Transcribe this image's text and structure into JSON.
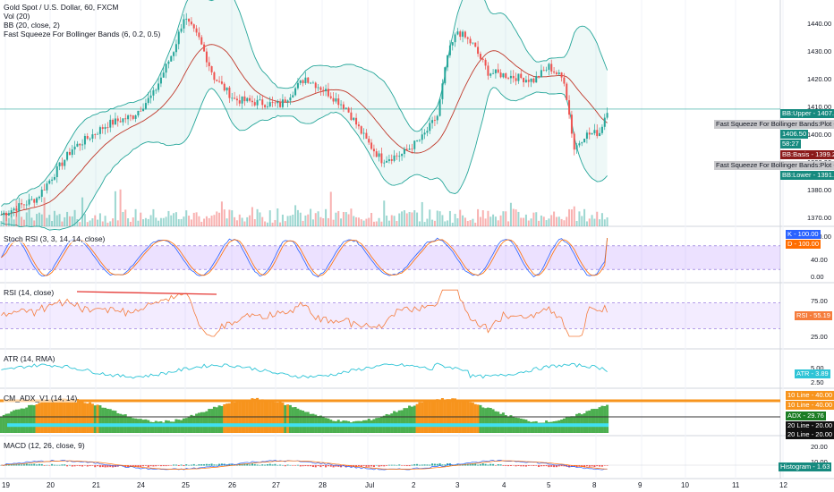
{
  "header": {
    "symbol_line": "Gold Spot / U.S. Dollar, 60, FXCM",
    "vol_line": "Vol (20)",
    "bb_line": "BB (20, close, 2)",
    "fs_line": "Fast Squeeze For Bollinger Bands (6, 0.2, 0.5)"
  },
  "panes": {
    "stoch": "Stoch RSI (3, 3, 14, 14, close)",
    "rsi": "RSI (14, close)",
    "atr": "ATR (14, RMA)",
    "adx": "CM_ADX_V1 (14, 14)",
    "macd": "MACD (12, 26, close, 9)"
  },
  "colors": {
    "up": "#26a69a",
    "down": "#ef5350",
    "bb_basis": "#c0392b",
    "bb_band": "#26a69a",
    "bb_fill": "rgba(38,166,154,0.08)",
    "stoch_k": "#2962ff",
    "stoch_d": "#ff6d00",
    "stoch_fill": "rgba(170,120,255,0.22)",
    "rsi_line": "#f57c3c",
    "rsi_fill": "rgba(160,100,255,0.12)",
    "atr_line": "#2ec4d6",
    "adx_orange": "#f7941d",
    "adx_green": "#4caf50",
    "adx_cyan": "#40e0f0"
  },
  "price_axis": [
    "1440.00",
    "1430.00",
    "1420.00",
    "1410.00",
    "1400.00",
    "1390.00",
    "1380.00",
    "1370.00"
  ],
  "stoch_axis": [
    "100.00",
    "40.00",
    "0.00"
  ],
  "rsi_axis": [
    "75.00",
    "25.00"
  ],
  "atr_axis": [
    "5.00",
    "2.50"
  ],
  "macd_axis": [
    "20.00",
    "10.00"
  ],
  "tags": {
    "bb_upper": "BB:Upper - 1407.27",
    "fs_plot1": "Fast Squeeze For Bollinger Bands:Plot - 1406.50",
    "price": "1406.50",
    "countdown": "58:27",
    "bb_basis": "BB:Basis - 1399.22",
    "fs_plot2": "Fast Squeeze For Bollinger Bands:Plot - 1398.59",
    "bb_lower": "BB:Lower - 1391.18",
    "stoch_k": "K - 100.00",
    "stoch_d": "D - 100.00",
    "rsi": "RSI - 55.19",
    "atr": "ATR - 3.89",
    "adx10a": "10 Line - 40.00",
    "adx10b": "10 Line - 40.00",
    "adx": "ADX - 29.76",
    "adx20a": "20 Line - 20.00",
    "adx20b": "20 Line - 20.00",
    "histogram": "Histogram - 1.63"
  },
  "dates": [
    "19",
    "20",
    "21",
    "24",
    "25",
    "26",
    "27",
    "28",
    "Jul",
    "2",
    "3",
    "4",
    "5",
    "8",
    "9",
    "10",
    "11",
    "12"
  ],
  "chart_data": {
    "type": "candlestick",
    "x": [
      "19",
      "20",
      "21",
      "24",
      "25",
      "26",
      "27",
      "28",
      "Jul",
      "2",
      "3",
      "4",
      "5",
      "8"
    ],
    "close": [
      1360,
      1386,
      1400,
      1410,
      1436,
      1413,
      1409,
      1412,
      1392,
      1390,
      1435,
      1418,
      1411,
      1406.5
    ],
    "bb_upper_last": 1407.27,
    "bb_basis_last": 1399.22,
    "bb_lower_last": 1391.18,
    "stoch_k_last": 100.0,
    "stoch_d_last": 100.0,
    "rsi_last": 55.19,
    "atr_last": 3.89,
    "adx_last": 29.76,
    "macd_histogram_last": 1.63,
    "ylim": [
      1365,
      1445
    ]
  }
}
